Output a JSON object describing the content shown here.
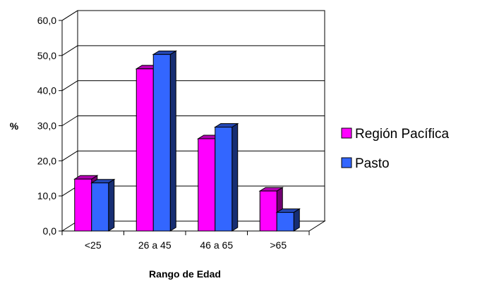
{
  "chart_data": {
    "type": "bar",
    "three_d": true,
    "categories": [
      "<25",
      "26 a 45",
      "46 a 65",
      ">65"
    ],
    "series": [
      {
        "name": "Región Pacífica",
        "values": [
          14.8,
          46.2,
          26.3,
          11.4
        ],
        "color": "#ff00ff"
      },
      {
        "name": "Pasto",
        "values": [
          13.7,
          50.3,
          29.6,
          5.3
        ],
        "color": "#3366ff"
      }
    ],
    "xlabel": "Rango de Edad",
    "ylabel": "%",
    "ylim": [
      0,
      60
    ],
    "y_ticks": [
      "0,0",
      "10,0",
      "20,0",
      "30,0",
      "40,0",
      "50,0",
      "60,0"
    ],
    "grid": true,
    "legend_position": "right"
  }
}
